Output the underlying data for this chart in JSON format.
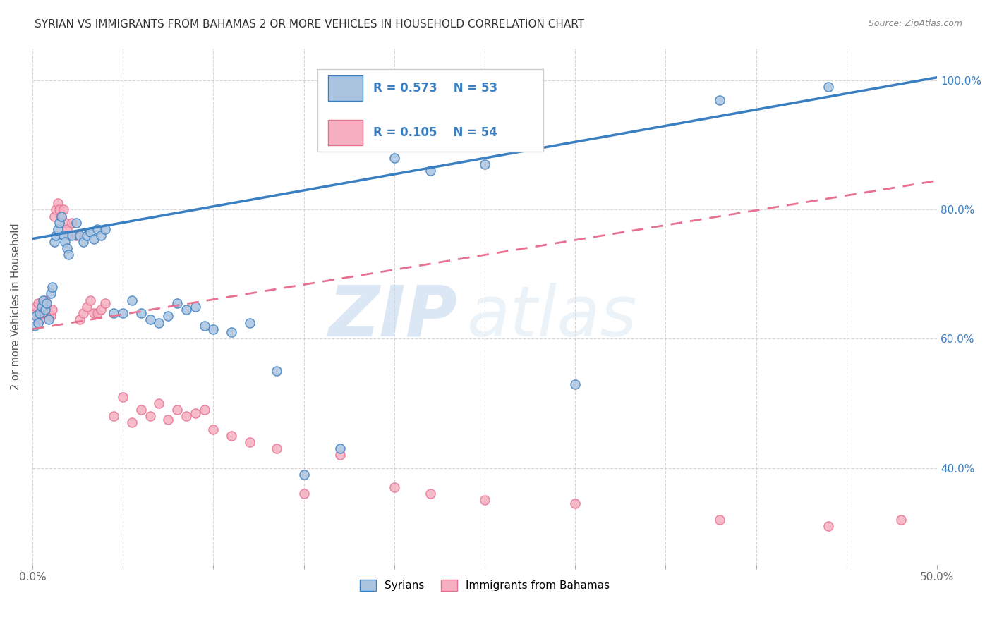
{
  "title": "SYRIAN VS IMMIGRANTS FROM BAHAMAS 2 OR MORE VEHICLES IN HOUSEHOLD CORRELATION CHART",
  "source": "Source: ZipAtlas.com",
  "ylabel": "2 or more Vehicles in Household",
  "x_min": 0.0,
  "x_max": 0.5,
  "y_min": 0.25,
  "y_max": 1.05,
  "x_ticks": [
    0.0,
    0.05,
    0.1,
    0.15,
    0.2,
    0.25,
    0.3,
    0.35,
    0.4,
    0.45,
    0.5
  ],
  "x_tick_labels": [
    "0.0%",
    "",
    "",
    "",
    "",
    "",
    "",
    "",
    "",
    "",
    "50.0%"
  ],
  "y_ticks": [
    0.4,
    0.6,
    0.8,
    1.0
  ],
  "y_tick_labels": [
    "40.0%",
    "60.0%",
    "80.0%",
    "100.0%"
  ],
  "syrian_color": "#aac4e0",
  "bahamas_color": "#f5afc0",
  "syrian_line_color": "#3a7fc1",
  "bahamas_line_color": "#e87090",
  "legend_text_color": "#3a7fc1",
  "watermark_zip": "ZIP",
  "watermark_atlas": "atlas",
  "syrian_line_x0": 0.0,
  "syrian_line_y0": 0.755,
  "syrian_line_x1": 0.5,
  "syrian_line_y1": 1.005,
  "bahamas_line_x0": 0.0,
  "bahamas_line_y0": 0.615,
  "bahamas_line_x1": 0.5,
  "bahamas_line_y1": 0.845,
  "syrians_x": [
    0.001,
    0.002,
    0.003,
    0.004,
    0.005,
    0.006,
    0.007,
    0.008,
    0.009,
    0.01,
    0.011,
    0.012,
    0.013,
    0.014,
    0.015,
    0.016,
    0.017,
    0.018,
    0.019,
    0.02,
    0.022,
    0.024,
    0.026,
    0.028,
    0.03,
    0.032,
    0.034,
    0.036,
    0.038,
    0.04,
    0.045,
    0.05,
    0.055,
    0.06,
    0.065,
    0.07,
    0.075,
    0.08,
    0.085,
    0.09,
    0.095,
    0.1,
    0.11,
    0.12,
    0.135,
    0.15,
    0.17,
    0.2,
    0.22,
    0.25,
    0.3,
    0.38,
    0.44
  ],
  "syrians_y": [
    0.62,
    0.635,
    0.625,
    0.64,
    0.65,
    0.66,
    0.645,
    0.655,
    0.63,
    0.67,
    0.68,
    0.75,
    0.76,
    0.77,
    0.78,
    0.79,
    0.76,
    0.75,
    0.74,
    0.73,
    0.76,
    0.78,
    0.76,
    0.75,
    0.76,
    0.765,
    0.755,
    0.77,
    0.76,
    0.77,
    0.64,
    0.64,
    0.66,
    0.64,
    0.63,
    0.625,
    0.635,
    0.655,
    0.645,
    0.65,
    0.62,
    0.615,
    0.61,
    0.625,
    0.55,
    0.39,
    0.43,
    0.88,
    0.86,
    0.87,
    0.53,
    0.97,
    0.99
  ],
  "bahamas_x": [
    0.001,
    0.002,
    0.003,
    0.004,
    0.005,
    0.006,
    0.007,
    0.008,
    0.009,
    0.01,
    0.011,
    0.012,
    0.013,
    0.014,
    0.015,
    0.016,
    0.017,
    0.018,
    0.019,
    0.02,
    0.022,
    0.024,
    0.026,
    0.028,
    0.03,
    0.032,
    0.034,
    0.036,
    0.038,
    0.04,
    0.045,
    0.05,
    0.055,
    0.06,
    0.065,
    0.07,
    0.075,
    0.08,
    0.085,
    0.09,
    0.095,
    0.1,
    0.11,
    0.12,
    0.135,
    0.15,
    0.17,
    0.2,
    0.22,
    0.25,
    0.3,
    0.38,
    0.44,
    0.48
  ],
  "bahamas_y": [
    0.64,
    0.65,
    0.655,
    0.63,
    0.64,
    0.645,
    0.66,
    0.65,
    0.64,
    0.635,
    0.645,
    0.79,
    0.8,
    0.81,
    0.8,
    0.79,
    0.8,
    0.78,
    0.77,
    0.76,
    0.78,
    0.76,
    0.63,
    0.64,
    0.65,
    0.66,
    0.64,
    0.64,
    0.645,
    0.655,
    0.48,
    0.51,
    0.47,
    0.49,
    0.48,
    0.5,
    0.475,
    0.49,
    0.48,
    0.485,
    0.49,
    0.46,
    0.45,
    0.44,
    0.43,
    0.36,
    0.42,
    0.37,
    0.36,
    0.35,
    0.345,
    0.32,
    0.31,
    0.32
  ]
}
